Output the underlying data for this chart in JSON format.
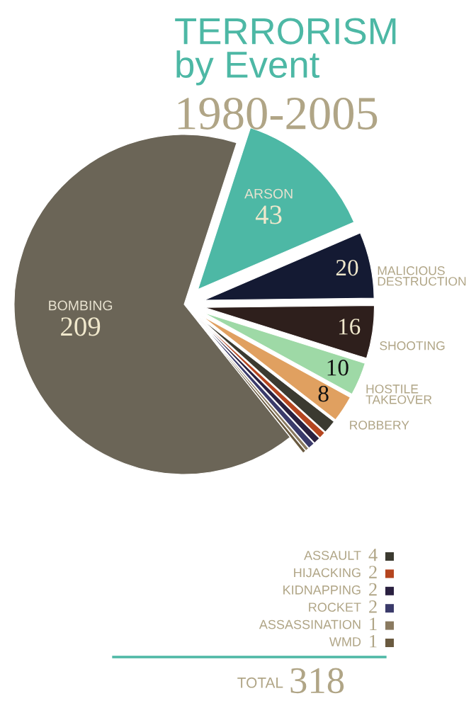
{
  "chart_data": {
    "type": "pie",
    "title": "TERRORISM\nby Event",
    "subtitle": "1980-2005",
    "categories": [
      "BOMBING",
      "ARSON",
      "MALICIOUS\nDESTRUCTION",
      "SHOOTING",
      "HOSTILE\nTAKEOVER",
      "ROBBERY",
      "ASSAULT",
      "HIJACKING",
      "KIDNAPPING",
      "ROCKET",
      "ASSASSINATION",
      "WMD"
    ],
    "values": [
      209,
      43,
      20,
      16,
      10,
      8,
      4,
      2,
      2,
      2,
      1,
      1
    ],
    "colors": [
      "#6b6557",
      "#4db8a5",
      "#141a33",
      "#2e1f1c",
      "#9ed9a6",
      "#e0a060",
      "#3b3a30",
      "#b5451f",
      "#2a2040",
      "#3a3a6a",
      "#8a7a60",
      "#6a5a40"
    ],
    "data_labels": true,
    "legend": "bottom right",
    "annotations": [
      "TOTAL 318"
    ]
  }
}
